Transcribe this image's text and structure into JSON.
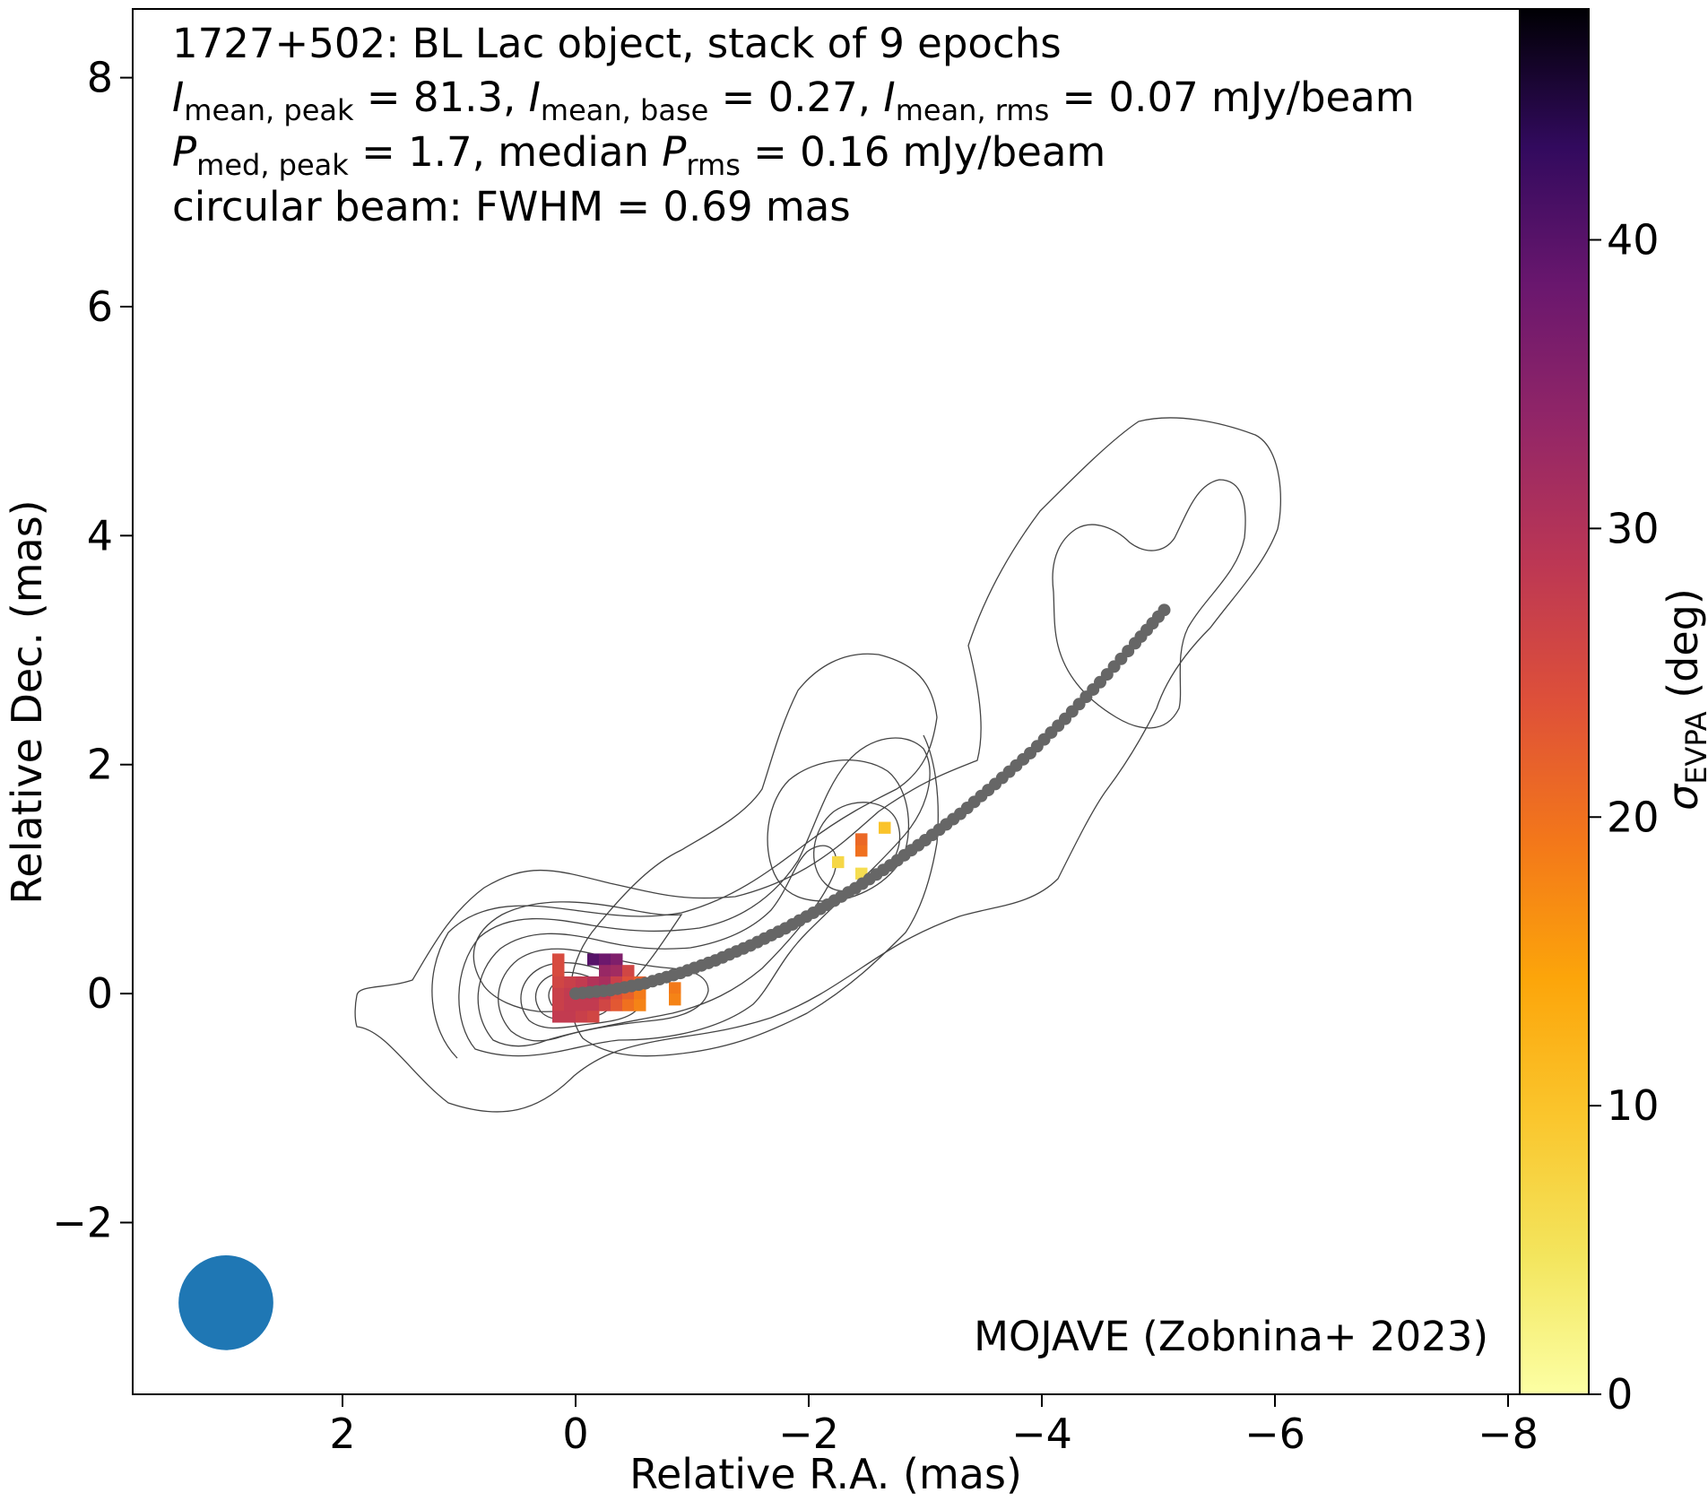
{
  "chart_data": {
    "type": "heatmap",
    "source_label": "1727+502: BL Lac object, stack of 9 epochs",
    "info_lines": [
      {
        "parts": [
          {
            "t": "I",
            "s": "i"
          },
          {
            "t": "mean, peak",
            "s": "sub"
          },
          {
            "t": " = 81.3, "
          },
          {
            "t": "I",
            "s": "i"
          },
          {
            "t": "mean, base",
            "s": "sub"
          },
          {
            "t": " = 0.27, "
          },
          {
            "t": "I",
            "s": "i"
          },
          {
            "t": "mean, rms",
            "s": "sub"
          },
          {
            "t": " = 0.07 mJy/beam"
          }
        ]
      },
      {
        "parts": [
          {
            "t": "P",
            "s": "i"
          },
          {
            "t": "med, peak",
            "s": "sub"
          },
          {
            "t": " = 1.7, median "
          },
          {
            "t": "P",
            "s": "i"
          },
          {
            "t": "rms",
            "s": "sub"
          },
          {
            "t": " = 0.16 mJy/beam"
          }
        ]
      },
      {
        "parts": [
          {
            "t": "circular beam: FWHM = 0.69 mas"
          }
        ]
      }
    ],
    "credit": "MOJAVE (Zobnina+ 2023)",
    "xlabel": "Relative R.A. (mas)",
    "ylabel": "Relative Dec. (mas)",
    "xlim": [
      3.8,
      -8.1
    ],
    "ylim": [
      -3.5,
      8.6
    ],
    "xticks": [
      2,
      0,
      -2,
      -4,
      -6,
      -8
    ],
    "xtick_labels": [
      "2",
      "0",
      "−2",
      "−4",
      "−6",
      "−8"
    ],
    "yticks": [
      -2,
      0,
      2,
      4,
      6,
      8
    ],
    "ytick_labels": [
      "−2",
      "0",
      "2",
      "4",
      "6",
      "8"
    ],
    "colorbar": {
      "label_symbol": "σ",
      "label_sub": "EVPA",
      "label_unit": " (deg)",
      "range": [
        0,
        48
      ],
      "ticks": [
        0,
        10,
        20,
        30,
        40
      ],
      "tick_labels": [
        "0",
        "10",
        "20",
        "30",
        "40"
      ],
      "colormap": "inferno_r"
    },
    "beam": {
      "x": 3.0,
      "y": -2.7,
      "fwhm": 0.69,
      "color": "#1f77b4"
    },
    "ridge_line": {
      "color": "#666666",
      "points": [
        [
          0.0,
          0.0
        ],
        [
          -0.3,
          0.03
        ],
        [
          -0.6,
          0.09
        ],
        [
          -0.9,
          0.18
        ],
        [
          -1.2,
          0.29
        ],
        [
          -1.5,
          0.42
        ],
        [
          -1.8,
          0.57
        ],
        [
          -2.1,
          0.74
        ],
        [
          -2.4,
          0.92
        ],
        [
          -2.7,
          1.12
        ],
        [
          -3.0,
          1.34
        ],
        [
          -3.3,
          1.57
        ],
        [
          -3.6,
          1.83
        ],
        [
          -3.9,
          2.1
        ],
        [
          -4.2,
          2.4
        ],
        [
          -4.5,
          2.72
        ],
        [
          -4.8,
          3.06
        ],
        [
          -5.05,
          3.35
        ]
      ]
    },
    "evpa_pixels": [
      {
        "x": 0.15,
        "y": 0.3,
        "v": 25
      },
      {
        "x": 0.15,
        "y": 0.2,
        "v": 25
      },
      {
        "x": 0.15,
        "y": 0.1,
        "v": 26
      },
      {
        "x": 0.15,
        "y": 0.0,
        "v": 27
      },
      {
        "x": 0.15,
        "y": -0.1,
        "v": 27
      },
      {
        "x": 0.15,
        "y": -0.2,
        "v": 28
      },
      {
        "x": 0.05,
        "y": 0.1,
        "v": 27
      },
      {
        "x": 0.05,
        "y": 0.0,
        "v": 28
      },
      {
        "x": 0.05,
        "y": -0.1,
        "v": 28
      },
      {
        "x": 0.05,
        "y": -0.2,
        "v": 28
      },
      {
        "x": -0.05,
        "y": 0.1,
        "v": 28
      },
      {
        "x": -0.05,
        "y": 0.0,
        "v": 29
      },
      {
        "x": -0.05,
        "y": -0.1,
        "v": 28
      },
      {
        "x": -0.05,
        "y": -0.2,
        "v": 27
      },
      {
        "x": -0.15,
        "y": 0.3,
        "v": 40
      },
      {
        "x": -0.15,
        "y": 0.1,
        "v": 30
      },
      {
        "x": -0.15,
        "y": 0.0,
        "v": 29
      },
      {
        "x": -0.15,
        "y": -0.1,
        "v": 28
      },
      {
        "x": -0.15,
        "y": -0.2,
        "v": 26
      },
      {
        "x": -0.25,
        "y": 0.3,
        "v": 38
      },
      {
        "x": -0.25,
        "y": 0.2,
        "v": 33
      },
      {
        "x": -0.25,
        "y": 0.1,
        "v": 31
      },
      {
        "x": -0.25,
        "y": 0.0,
        "v": 28
      },
      {
        "x": -0.25,
        "y": -0.1,
        "v": 26
      },
      {
        "x": -0.35,
        "y": 0.3,
        "v": 36
      },
      {
        "x": -0.35,
        "y": 0.2,
        "v": 32
      },
      {
        "x": -0.35,
        "y": 0.1,
        "v": 27
      },
      {
        "x": -0.35,
        "y": 0.0,
        "v": 24
      },
      {
        "x": -0.35,
        "y": -0.1,
        "v": 23
      },
      {
        "x": -0.45,
        "y": 0.2,
        "v": 26
      },
      {
        "x": -0.45,
        "y": 0.1,
        "v": 24
      },
      {
        "x": -0.45,
        "y": 0.0,
        "v": 22
      },
      {
        "x": -0.45,
        "y": -0.1,
        "v": 20
      },
      {
        "x": -0.55,
        "y": 0.1,
        "v": 22
      },
      {
        "x": -0.55,
        "y": 0.0,
        "v": 19
      },
      {
        "x": -0.55,
        "y": -0.1,
        "v": 18
      },
      {
        "x": -0.85,
        "y": 0.05,
        "v": 19
      },
      {
        "x": -0.85,
        "y": -0.05,
        "v": 18
      },
      {
        "x": -2.25,
        "y": 1.15,
        "v": 7
      },
      {
        "x": -2.45,
        "y": 1.25,
        "v": 20
      },
      {
        "x": -2.45,
        "y": 1.35,
        "v": 21
      },
      {
        "x": -2.45,
        "y": 1.05,
        "v": 6
      },
      {
        "x": -2.65,
        "y": 1.45,
        "v": 10
      }
    ]
  }
}
